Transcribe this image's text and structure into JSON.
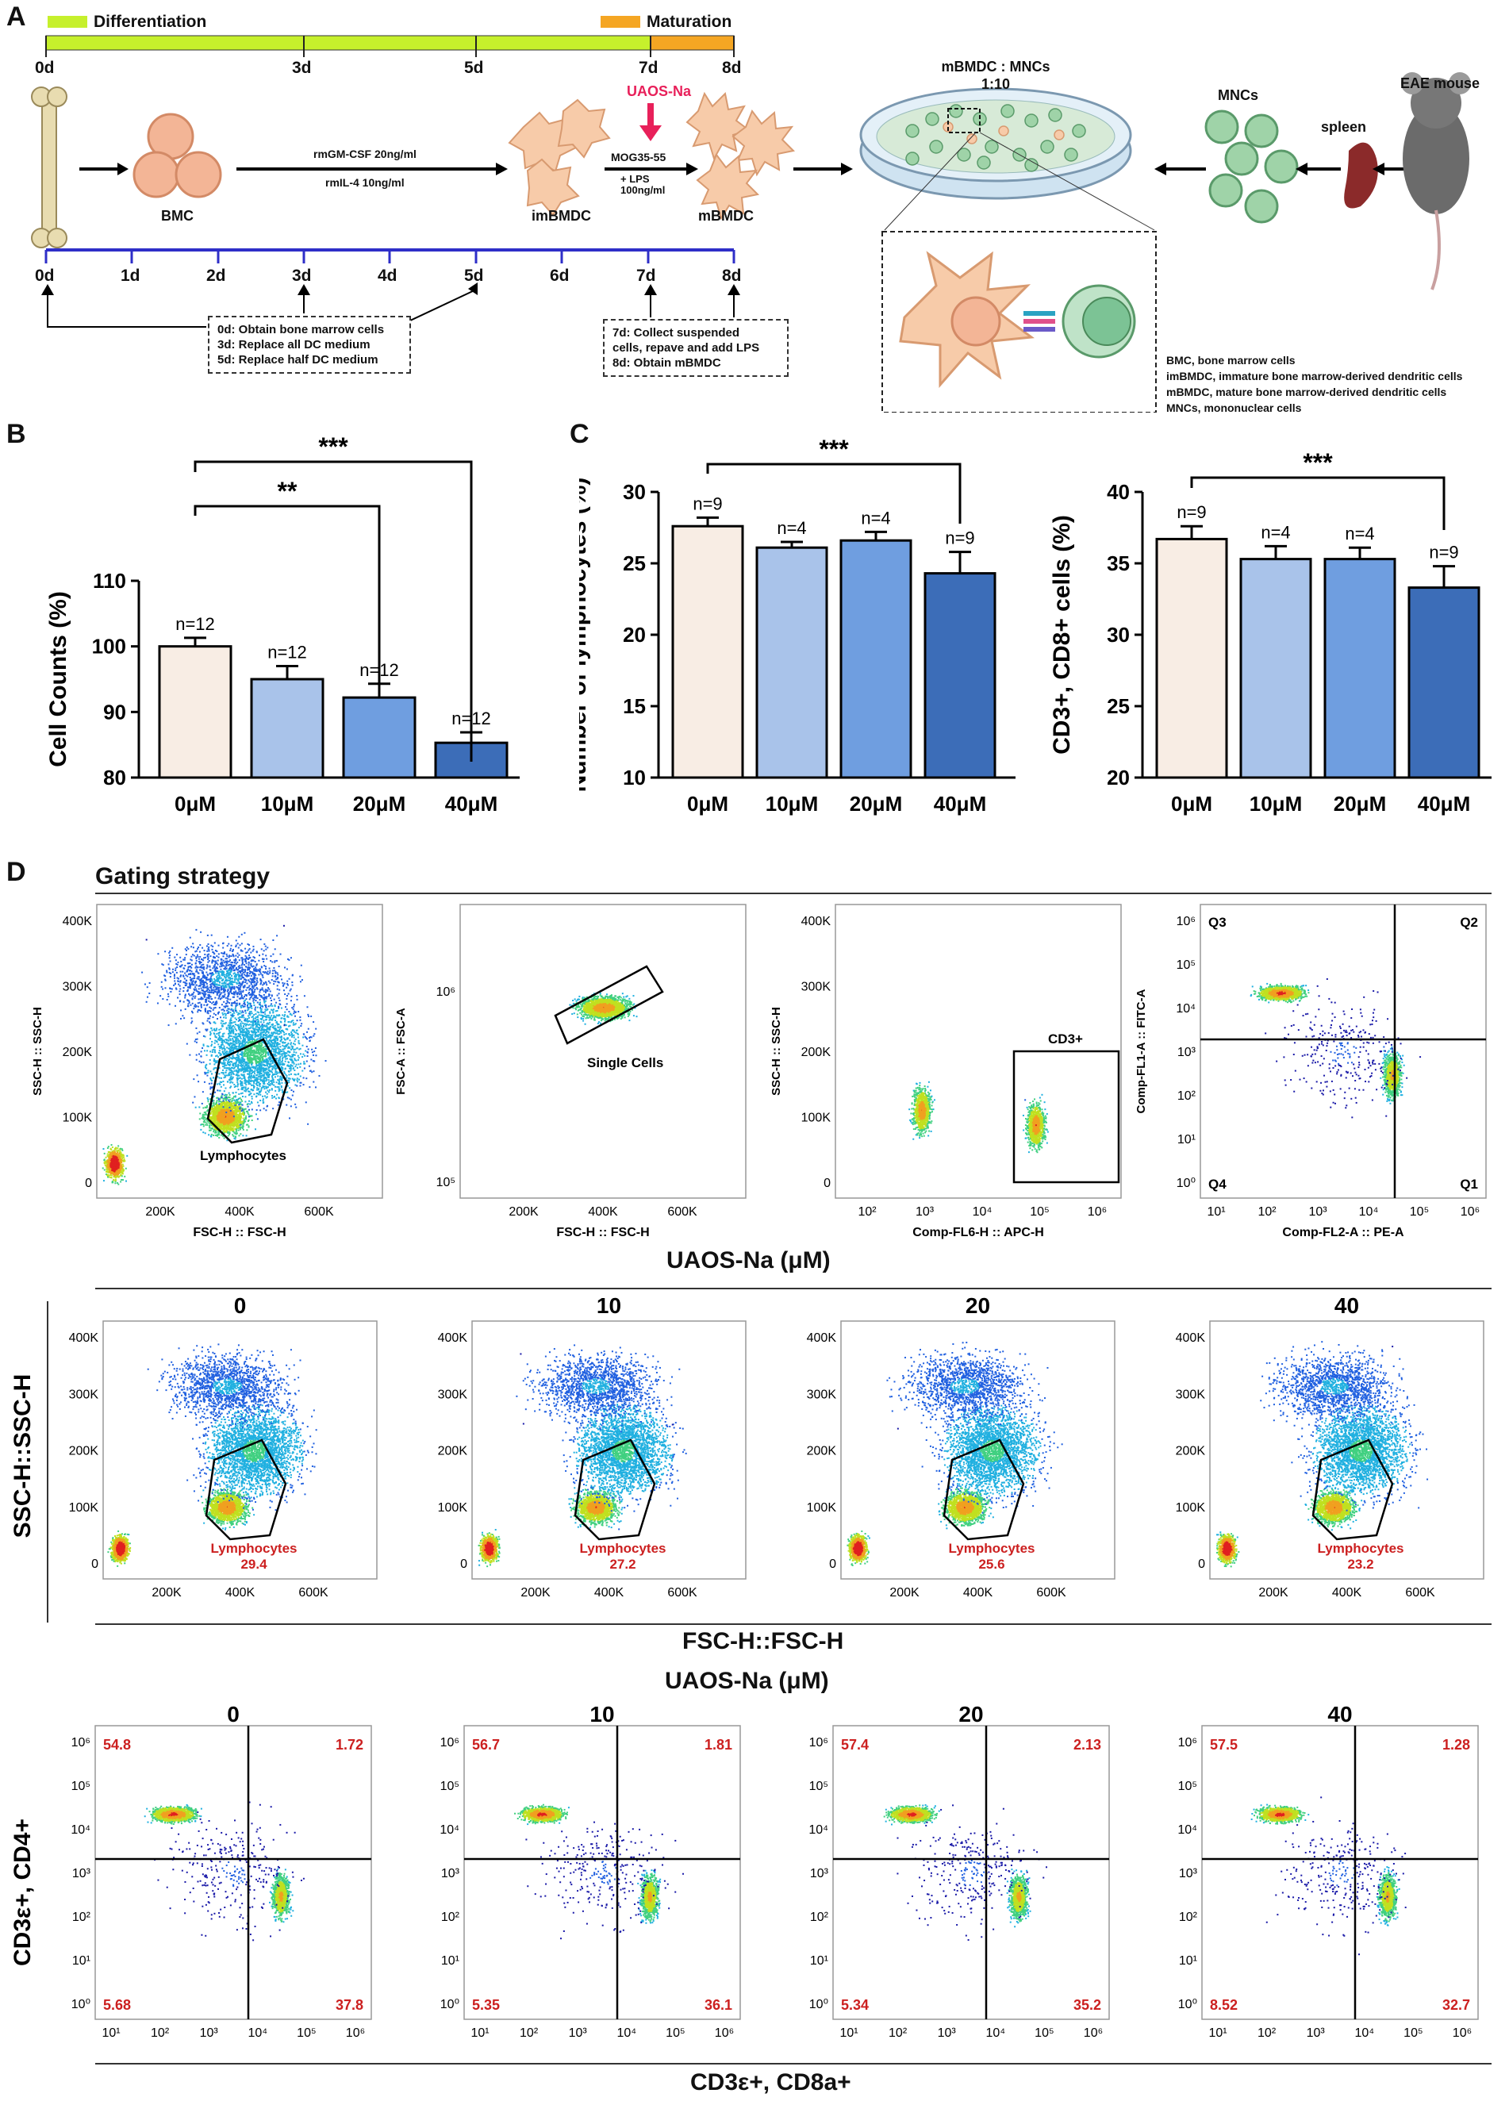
{
  "panelA": {
    "letter": "A",
    "timeline_labels": {
      "differentiation": "Differentiation",
      "maturation": "Maturation",
      "ticks_top": [
        "0d",
        "3d",
        "5d",
        "7d",
        "8d"
      ],
      "ticks_bottom": [
        "0d",
        "1d",
        "2d",
        "3d",
        "4d",
        "5d",
        "6d",
        "7d",
        "8d"
      ]
    },
    "cells": {
      "bmc": "BMC",
      "imbmdc": "imBMDC",
      "mbmdc": "mBMDC",
      "mncs": "MNCs",
      "spleen": "spleen",
      "eae": "EAE mouse",
      "coculture_title": "mBMDC : MNCs",
      "coculture_ratio": "1:10"
    },
    "arrows": {
      "cytokine1": "rmGM-CSF 20ng/ml",
      "cytokine2": "rmIL-4 10ng/ml",
      "drug": "UAOS-Na",
      "mog": "MOG35-55",
      "lps": "+ LPS",
      "lps_conc": "100ng/ml"
    },
    "note1": [
      "0d: Obtain bone marrow cells",
      "3d: Replace all DC medium",
      "5d: Replace half DC medium"
    ],
    "note2": [
      "7d: Collect suspended",
      "cells, repave and add LPS",
      "8d: Obtain mBMDC"
    ],
    "abbreviations": [
      "BMC, bone marrow cells",
      "imBMDC, immature bone marrow-derived dendritic cells",
      "mBMDC, mature bone marrow-derived dendritic cells",
      "MNCs, mononuclear cells"
    ],
    "colors": {
      "differentiation": "#c6f02c",
      "maturation": "#f5a623",
      "timeline": "#2e2ec8"
    }
  },
  "panelB": {
    "letter": "B"
  },
  "panelC": {
    "letter": "C"
  },
  "chart_data": [
    {
      "type": "bar",
      "title": "",
      "ylabel": "Cell Counts (%)",
      "categories": [
        "0μM",
        "10μM",
        "20μM",
        "40μM"
      ],
      "values": [
        100,
        95,
        92.2,
        85.3
      ],
      "errors": [
        1.3,
        2.0,
        2.1,
        1.6
      ],
      "n_labels": [
        "n=12",
        "n=12",
        "n=12",
        "n=12"
      ],
      "ylim": [
        80,
        110
      ],
      "yticks": [
        80,
        90,
        100,
        110
      ],
      "significance": [
        {
          "from": 0,
          "to": 2,
          "label": "**"
        },
        {
          "from": 0,
          "to": 3,
          "label": "***"
        }
      ],
      "colors": [
        "#f8ede4",
        "#a9c3ea",
        "#6f9ee0",
        "#3c6db8"
      ]
    },
    {
      "type": "bar",
      "title": "",
      "ylabel": "Number of lymphocytes (%)",
      "categories": [
        "0μM",
        "10μM",
        "20μM",
        "40μM"
      ],
      "values": [
        27.6,
        26.1,
        26.6,
        24.3
      ],
      "errors": [
        0.6,
        0.4,
        0.6,
        1.5
      ],
      "n_labels": [
        "n=9",
        "n=4",
        "n=4",
        "n=9"
      ],
      "ylim": [
        10,
        30
      ],
      "yticks": [
        10,
        15,
        20,
        25,
        30
      ],
      "significance": [
        {
          "from": 0,
          "to": 3,
          "label": "***"
        }
      ],
      "colors": [
        "#f8ede4",
        "#a9c3ea",
        "#6f9ee0",
        "#3c6db8"
      ]
    },
    {
      "type": "bar",
      "title": "",
      "ylabel": "CD3+, CD8+ cells (%)",
      "categories": [
        "0μM",
        "10μM",
        "20μM",
        "40μM"
      ],
      "values": [
        36.7,
        35.3,
        35.3,
        33.3
      ],
      "errors": [
        0.9,
        0.9,
        0.8,
        1.5
      ],
      "n_labels": [
        "n=9",
        "n=4",
        "n=4",
        "n=9"
      ],
      "ylim": [
        20,
        40
      ],
      "yticks": [
        20,
        25,
        30,
        35,
        40
      ],
      "significance": [
        {
          "from": 0,
          "to": 3,
          "label": "***"
        }
      ],
      "colors": [
        "#f8ede4",
        "#a9c3ea",
        "#6f9ee0",
        "#3c6db8"
      ]
    }
  ],
  "panelD": {
    "letter": "D",
    "gating_title": "Gating strategy",
    "gating_plots": [
      {
        "ylabel": "SSC-H :: SSC-H",
        "xlabel": "FSC-H :: FSC-H",
        "yticks": [
          "400K",
          "300K",
          "200K",
          "100K",
          "0"
        ],
        "xticks": [
          "200K",
          "400K",
          "600K"
        ],
        "gate": "Lymphocytes"
      },
      {
        "ylabel": "FSC-A :: FSC-A",
        "xlabel": "FSC-H :: FSC-H",
        "yticks": [
          "10⁶",
          "10⁵"
        ],
        "xticks": [
          "200K",
          "400K",
          "600K"
        ],
        "gate": "Single Cells"
      },
      {
        "ylabel": "SSC-H :: SSC-H",
        "xlabel": "Comp-FL6-H :: APC-H",
        "yticks": [
          "400K",
          "300K",
          "200K",
          "100K",
          "0"
        ],
        "xticks": [
          "10²",
          "10³",
          "10⁴",
          "10⁵",
          "10⁶"
        ],
        "gate": "CD3+"
      },
      {
        "ylabel": "Comp-FL1-A :: FITC-A",
        "xlabel": "Comp-FL2-A :: PE-A",
        "yticks": [
          "10⁶",
          "10⁵",
          "10⁴",
          "10³",
          "10²",
          "10¹",
          "10⁰"
        ],
        "xticks": [
          "10¹",
          "10²",
          "10³",
          "10⁴",
          "10⁵",
          "10⁶"
        ],
        "quadrants": [
          "Q3",
          "Q2",
          "Q4",
          "Q1"
        ]
      }
    ],
    "row2_title": "UAOS-Na (μM)",
    "row2_ylabel": "SSC-H::SSC-H",
    "row2_xlabel": "FSC-H::FSC-H",
    "row2_yticks": [
      "400K",
      "300K",
      "200K",
      "100K",
      "0"
    ],
    "row2_xticks": [
      "200K",
      "400K",
      "600K"
    ],
    "row2_gate": "Lymphocytes",
    "row2_plots": [
      {
        "dose": "0",
        "value": "29.4"
      },
      {
        "dose": "10",
        "value": "27.2"
      },
      {
        "dose": "20",
        "value": "25.6"
      },
      {
        "dose": "40",
        "value": "23.2"
      }
    ],
    "row3_title": "UAOS-Na (μM)",
    "row3_ylabel": "CD3ε+, CD4+",
    "row3_xlabel": "CD3ε+, CD8a+",
    "row3_yticks": [
      "10⁶",
      "10⁵",
      "10⁴",
      "10³",
      "10²",
      "10¹",
      "10⁰"
    ],
    "row3_xticks": [
      "10¹",
      "10²",
      "10³",
      "10⁴",
      "10⁵",
      "10⁶"
    ],
    "row3_plots": [
      {
        "dose": "0",
        "q3": "54.8",
        "q2": "1.72",
        "q4": "5.68",
        "q1": "37.8"
      },
      {
        "dose": "10",
        "q3": "56.7",
        "q2": "1.81",
        "q4": "5.35",
        "q1": "36.1"
      },
      {
        "dose": "20",
        "q3": "57.4",
        "q2": "2.13",
        "q4": "5.34",
        "q1": "35.2"
      },
      {
        "dose": "40",
        "q3": "57.5",
        "q2": "1.28",
        "q4": "8.52",
        "q1": "32.7"
      }
    ]
  }
}
